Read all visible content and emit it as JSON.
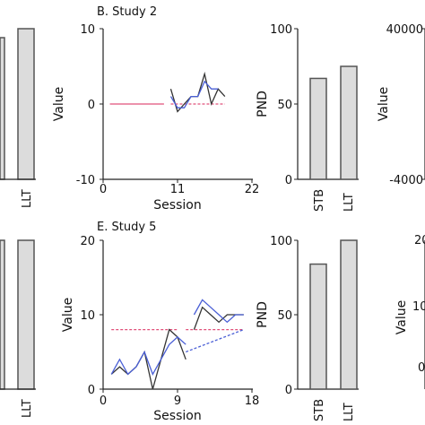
{
  "chart_data": [
    {
      "id": "partial-top-left",
      "type": "bar",
      "categories": [
        "",
        "LLT"
      ],
      "values": [
        null,
        null
      ],
      "ylim": [
        0,
        100
      ]
    },
    {
      "id": "study2-line",
      "type": "line",
      "title": "B. Study 2",
      "xlabel": "Session",
      "ylabel": "Value",
      "xlim": [
        0,
        22
      ],
      "ylim": [
        -10,
        10
      ],
      "xticks": [
        "0",
        "11",
        "22"
      ],
      "yticks": [
        "-10",
        "0",
        "10"
      ],
      "series": [
        {
          "color": "#e0507a",
          "style": "solid",
          "x": [
            1,
            9
          ],
          "y": [
            0,
            0
          ]
        },
        {
          "color": "#e0507a",
          "style": "dashed",
          "x": [
            10,
            18
          ],
          "y": [
            0,
            0
          ]
        },
        {
          "color": "#333333",
          "style": "solid",
          "x": [
            10,
            11,
            12,
            13,
            14,
            15,
            16,
            17,
            18
          ],
          "y": [
            2,
            -1,
            0,
            1,
            1,
            4,
            0,
            2,
            1
          ]
        },
        {
          "color": "#4a5fd6",
          "style": "solid",
          "x": [
            10,
            11,
            12,
            13,
            14,
            15,
            16,
            17
          ],
          "y": [
            1,
            -0.5,
            -0.5,
            1,
            1,
            3,
            2,
            2
          ]
        }
      ]
    },
    {
      "id": "study2-pnd",
      "type": "bar",
      "categories": [
        "STB",
        "LLT"
      ],
      "values": [
        67,
        75
      ],
      "ylabel": "PND",
      "ylim": [
        0,
        100
      ],
      "yticks": [
        "0",
        "50",
        "100"
      ]
    },
    {
      "id": "partial-top-right",
      "type": "line",
      "ylabel": "Value",
      "yticks": [
        "40000",
        "-4000"
      ]
    },
    {
      "id": "partial-bottom-left",
      "type": "bar",
      "categories": [
        "",
        "LLT"
      ],
      "values": [
        null,
        null
      ],
      "ylim": [
        0,
        100
      ]
    },
    {
      "id": "study5-line",
      "type": "line",
      "title": "E. Study 5",
      "xlabel": "Session",
      "ylabel": "Value",
      "xlim": [
        0,
        18
      ],
      "ylim": [
        0,
        20
      ],
      "xticks": [
        "0",
        "9",
        "18"
      ],
      "yticks": [
        "0",
        "10",
        "20"
      ],
      "series": [
        {
          "color": "#e0507a",
          "style": "dashed",
          "x": [
            1,
            9
          ],
          "y": [
            8,
            8
          ]
        },
        {
          "color": "#e0507a",
          "style": "dashed",
          "x": [
            10,
            17
          ],
          "y": [
            8,
            8
          ]
        },
        {
          "color": "#4a5fd6",
          "style": "dashed",
          "x": [
            10,
            17
          ],
          "y": [
            5,
            8
          ]
        },
        {
          "color": "#333333",
          "style": "solid",
          "x": [
            1,
            2,
            3,
            4,
            5,
            6,
            7,
            8,
            9,
            10
          ],
          "y": [
            2,
            3,
            2,
            3,
            5,
            0,
            4,
            8,
            7,
            4
          ]
        },
        {
          "color": "#4a5fd6",
          "style": "solid",
          "x": [
            1,
            2,
            3,
            4,
            5,
            6,
            7,
            8,
            9,
            10
          ],
          "y": [
            2,
            4,
            2,
            3,
            5,
            2,
            4,
            6,
            7,
            6
          ]
        },
        {
          "color": "#333333",
          "style": "solid",
          "x": [
            11,
            12,
            13,
            14,
            15,
            16,
            17
          ],
          "y": [
            8,
            11,
            10,
            9,
            10,
            10,
            10
          ]
        },
        {
          "color": "#4a5fd6",
          "style": "solid",
          "x": [
            11,
            12,
            13,
            14,
            15,
            16,
            17
          ],
          "y": [
            10,
            12,
            11,
            10,
            9,
            10,
            10
          ]
        }
      ]
    },
    {
      "id": "study5-pnd",
      "type": "bar",
      "categories": [
        "STB",
        "LLT"
      ],
      "values": [
        84,
        100
      ],
      "ylabel": "PND",
      "ylim": [
        0,
        100
      ],
      "yticks": [
        "0",
        "50",
        "100"
      ]
    },
    {
      "id": "partial-bottom-right",
      "type": "line",
      "ylabel": "Value",
      "yticks": [
        "20",
        "10",
        "0"
      ]
    }
  ]
}
